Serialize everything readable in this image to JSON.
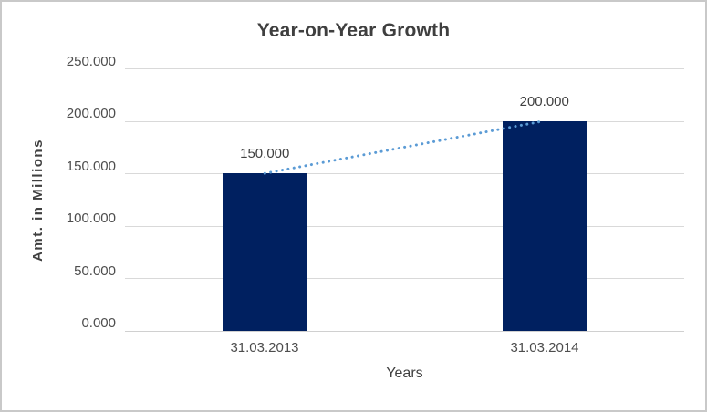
{
  "chart_data": {
    "type": "bar",
    "title": "Year-on-Year Growth",
    "xlabel": "Years",
    "ylabel": "Amt. in Millions",
    "categories": [
      "31.03.2013",
      "31.03.2014"
    ],
    "values": [
      150,
      200
    ],
    "value_labels": [
      "150.000",
      "200.000"
    ],
    "ytick_labels": [
      "0.000",
      "50.000",
      "100.000",
      "150.000",
      "200.000",
      "250.000"
    ],
    "ylim": [
      0,
      250
    ],
    "grid": true,
    "legend_position": "none",
    "bar_color": "#002060",
    "trendline": {
      "type": "linear",
      "style": "dotted",
      "color": "#5b9bd5"
    },
    "text_color": "#404040",
    "gridline_color": "#d9d9d9"
  }
}
